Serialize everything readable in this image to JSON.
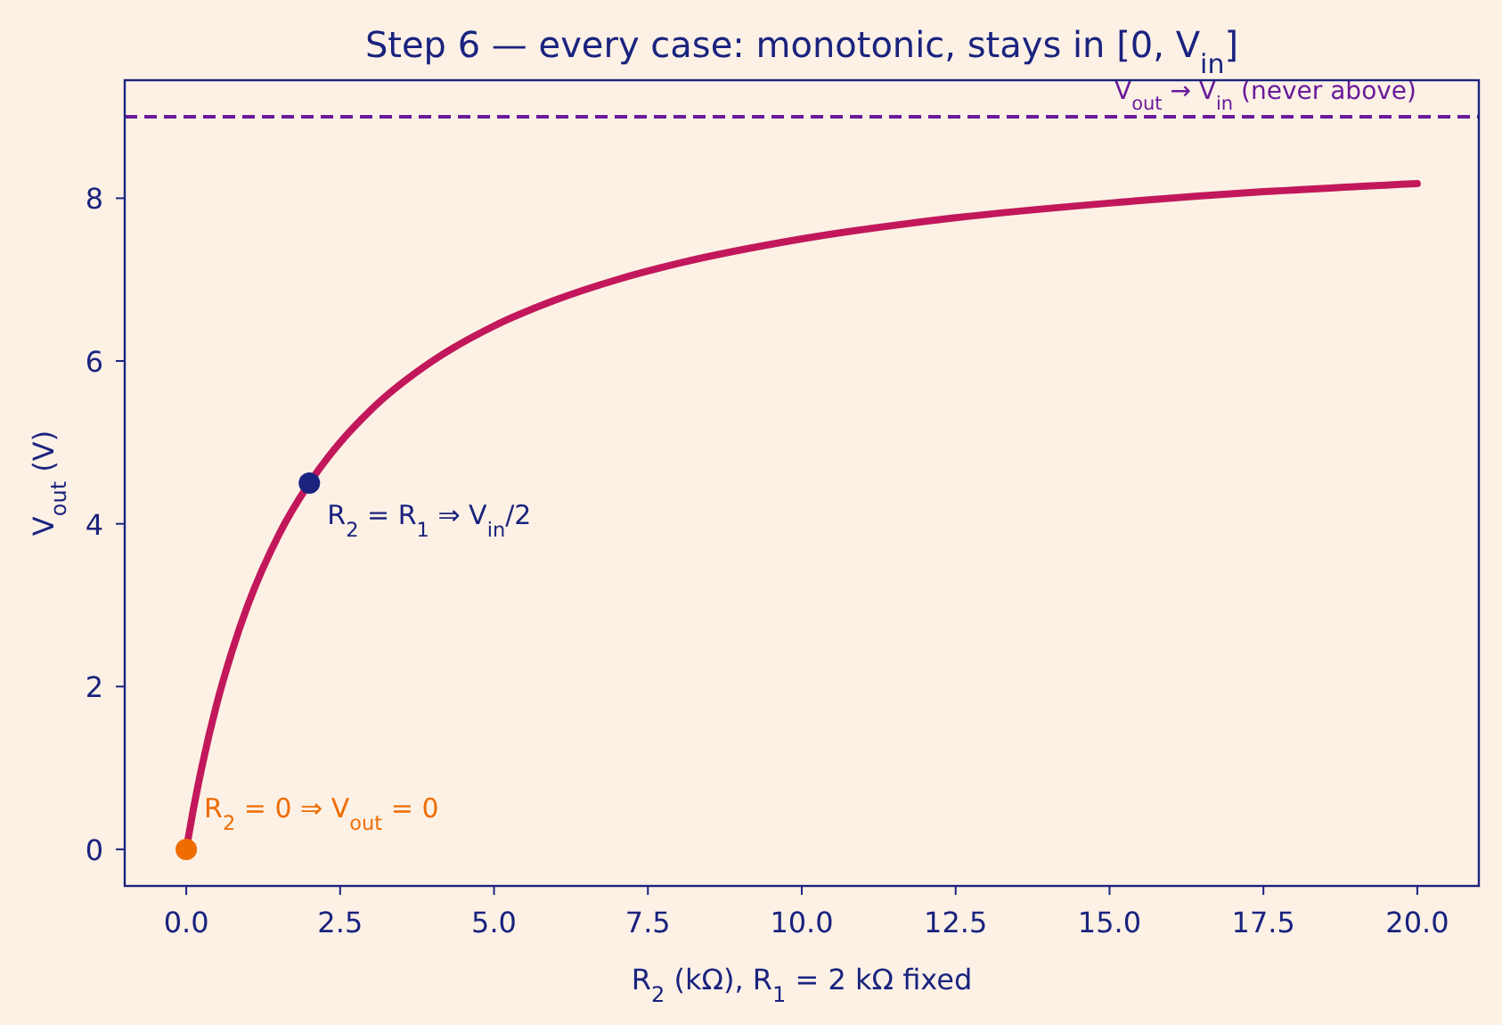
{
  "chart_data": {
    "type": "line",
    "title": "Step 6 — every case: monotonic, stays in [0, V$_{in}$]",
    "xlabel": "R$_{2}$  (kΩ),  R$_{1}$ = 2 kΩ fixed",
    "ylabel": "V$_{out}$  (V)",
    "series": [
      {
        "color": "#c2185b",
        "x": [
          0,
          0.1,
          0.25,
          0.5,
          0.75,
          1,
          1.5,
          2,
          2.5,
          3,
          4,
          5,
          6,
          7,
          8,
          10,
          12.5,
          15,
          17.5,
          20
        ],
        "values": [
          0,
          0.43,
          1.0,
          1.8,
          2.45,
          3.0,
          3.86,
          4.5,
          5.0,
          5.4,
          6.0,
          6.43,
          6.75,
          7.0,
          7.2,
          7.5,
          7.76,
          7.94,
          8.08,
          8.18
        ]
      },
      {
        "type": "scatter",
        "marker": "circle",
        "color": "#ef6c00",
        "x": [
          0
        ],
        "values": [
          0
        ]
      },
      {
        "type": "scatter",
        "marker": "circle",
        "color": "#1a237e",
        "x": [
          2
        ],
        "values": [
          4.5
        ]
      }
    ],
    "xlim": [
      -1,
      21
    ],
    "xticks": [
      {
        "value": 0,
        "label": "0.0"
      },
      2.5,
      {
        "value": 5,
        "label": "5.0"
      },
      7.5,
      {
        "value": 10,
        "label": "10.0"
      },
      12.5,
      {
        "value": 15,
        "label": "15.0"
      },
      17.5,
      {
        "value": 20,
        "label": "20.0"
      }
    ],
    "ylim": [
      -0.45,
      9.45
    ],
    "yticks": [
      0,
      2,
      4,
      6,
      8
    ],
    "ref_lines": [
      {
        "axis": "y",
        "value": 9,
        "label": "V$_{out}$ → V$_{in}$ (never above)",
        "color": "#6a1b9a",
        "line_style": "dashed"
      }
    ],
    "annotations": [
      {
        "text": "R$_{2}$ = 0 ⇒ V$_{out}$ = 0",
        "x": 0,
        "y": 0
      },
      {
        "text": "R$_{2}$ = R$_{1}$ ⇒ V$_{in}$/2",
        "x": 2,
        "y": 4.5
      }
    ],
    "grid": false
  }
}
